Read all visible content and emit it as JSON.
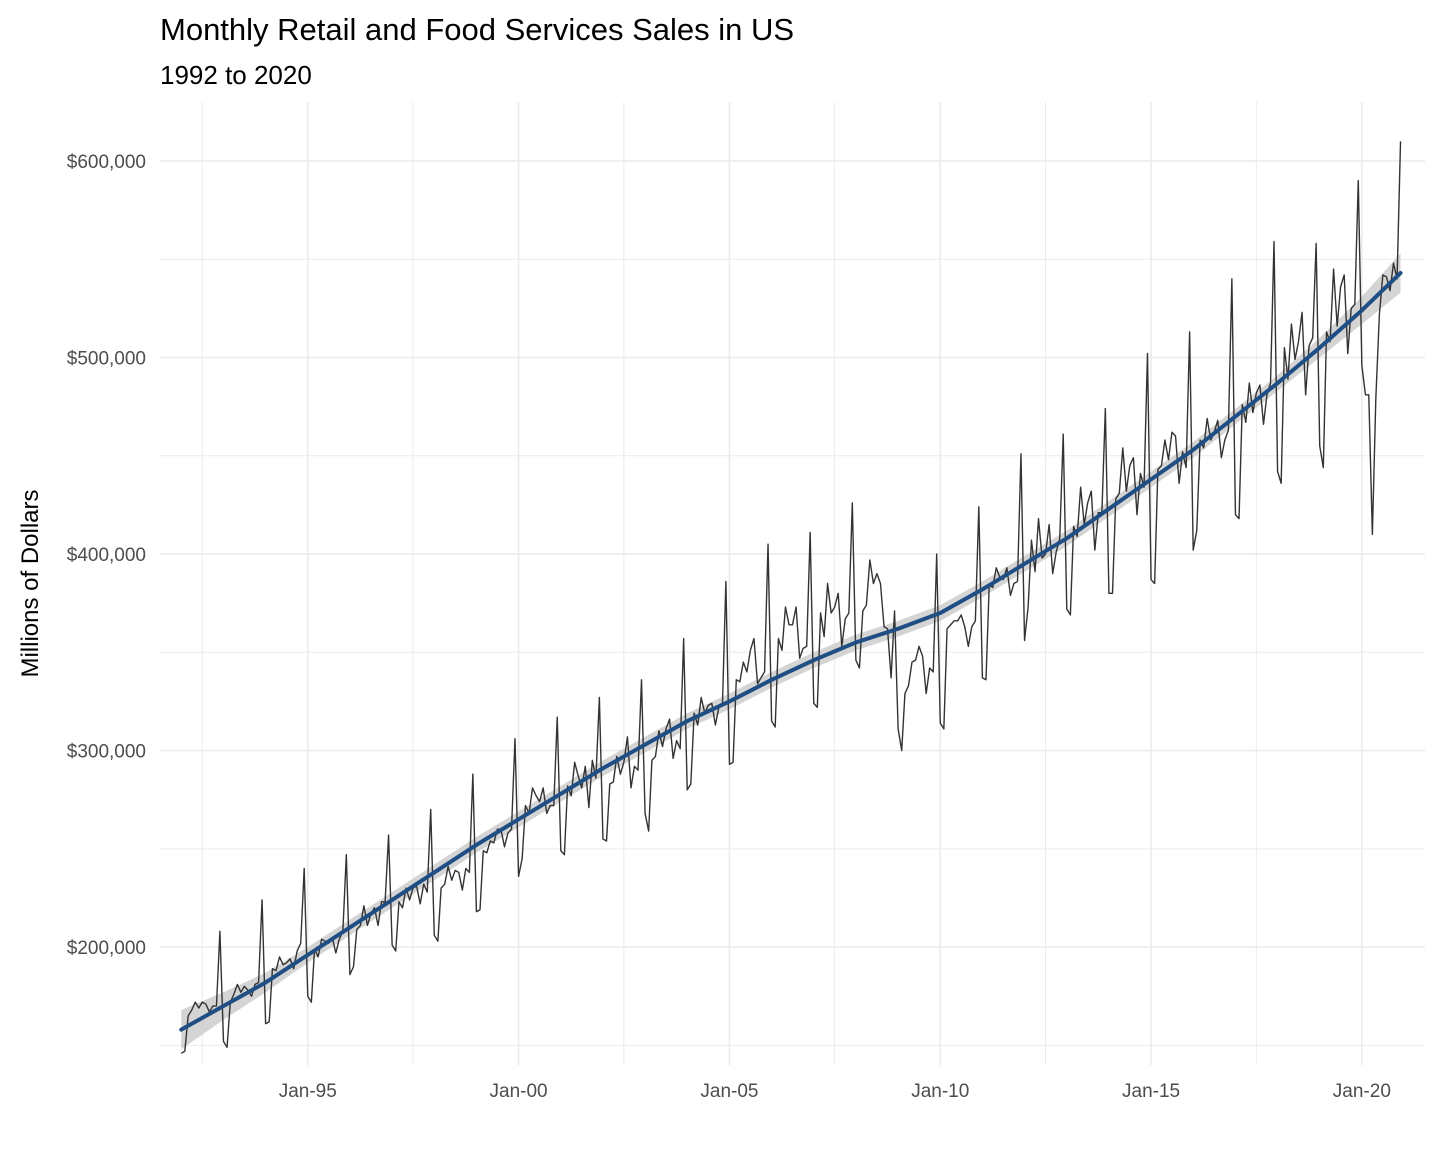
{
  "chart_data": {
    "type": "line",
    "title": "Monthly Retail and Food Services Sales in US",
    "subtitle": "1992 to 2020",
    "xlabel": "",
    "ylabel": "Millions of Dollars",
    "x_range": [
      "1991-07-01",
      "2021-07-01"
    ],
    "ylim": [
      140000,
      630000
    ],
    "x_ticks": [
      {
        "date": "1995-01-01",
        "label": "Jan-95"
      },
      {
        "date": "2000-01-01",
        "label": "Jan-00"
      },
      {
        "date": "2005-01-01",
        "label": "Jan-05"
      },
      {
        "date": "2010-01-01",
        "label": "Jan-10"
      },
      {
        "date": "2015-01-01",
        "label": "Jan-15"
      },
      {
        "date": "2020-01-01",
        "label": "Jan-20"
      }
    ],
    "y_ticks": [
      {
        "value": 200000,
        "label": "$200,000"
      },
      {
        "value": 300000,
        "label": "$300,000"
      },
      {
        "value": 400000,
        "label": "$400,000"
      },
      {
        "value": 500000,
        "label": "$500,000"
      },
      {
        "value": 600000,
        "label": "$600,000"
      }
    ],
    "grid": true,
    "legend": "none",
    "colors": {
      "raw_line": "#333333",
      "trend_line": "#1f4e85",
      "confidence_band": "#cccccc",
      "grid": "#ebebeb",
      "tick_text": "#4d4d4d"
    },
    "series": [
      {
        "type": "line",
        "years": {
          "1992": [
            146000,
            147000,
            165000,
            168000,
            172000,
            169000,
            172000,
            171000,
            167000,
            170000,
            170000,
            208000
          ],
          "1993": [
            152000,
            149000,
            172000,
            176000,
            181000,
            177000,
            180000,
            178000,
            175000,
            181000,
            182000,
            224000
          ],
          "1994": [
            161000,
            162000,
            189000,
            188000,
            195000,
            191000,
            192000,
            194000,
            189000,
            198000,
            202000,
            240000
          ],
          "1995": [
            175000,
            172000,
            199000,
            195000,
            204000,
            203000,
            202000,
            205000,
            197000,
            204000,
            208000,
            247000
          ],
          "1996": [
            186000,
            190000,
            209000,
            211000,
            221000,
            211000,
            217000,
            220000,
            211000,
            223000,
            223000,
            257000
          ],
          "1997": [
            201000,
            198000,
            223000,
            220000,
            230000,
            224000,
            230000,
            231000,
            222000,
            232000,
            228000,
            270000
          ],
          "1998": [
            206000,
            203000,
            230000,
            232000,
            241000,
            234000,
            239000,
            238000,
            229000,
            240000,
            238000,
            288000
          ],
          "1999": [
            218000,
            219000,
            249000,
            248000,
            254000,
            253000,
            260000,
            260000,
            251000,
            258000,
            260000,
            306000
          ],
          "2000": [
            236000,
            245000,
            272000,
            268000,
            281000,
            277000,
            274000,
            281000,
            268000,
            272000,
            272000,
            317000
          ],
          "2001": [
            249000,
            247000,
            282000,
            277000,
            294000,
            287000,
            281000,
            292000,
            271000,
            295000,
            286000,
            327000
          ],
          "2002": [
            255000,
            254000,
            283000,
            284000,
            297000,
            288000,
            294000,
            307000,
            281000,
            292000,
            290000,
            336000
          ],
          "2003": [
            268000,
            259000,
            295000,
            297000,
            310000,
            302000,
            311000,
            316000,
            296000,
            305000,
            301000,
            357000
          ],
          "2004": [
            280000,
            283000,
            319000,
            313000,
            327000,
            319000,
            323000,
            324000,
            313000,
            322000,
            323000,
            386000
          ],
          "2005": [
            293000,
            294000,
            336000,
            335000,
            345000,
            340000,
            351000,
            357000,
            334000,
            337000,
            340000,
            405000
          ],
          "2006": [
            315000,
            312000,
            357000,
            351000,
            373000,
            364000,
            364000,
            373000,
            347000,
            352000,
            353000,
            411000
          ],
          "2007": [
            324000,
            322000,
            370000,
            358000,
            385000,
            370000,
            373000,
            380000,
            353000,
            367000,
            370000,
            426000
          ],
          "2008": [
            346000,
            342000,
            371000,
            374000,
            397000,
            385000,
            390000,
            385000,
            363000,
            362000,
            337000,
            371000
          ],
          "2009": [
            311000,
            300000,
            329000,
            333000,
            345000,
            346000,
            353000,
            348000,
            329000,
            342000,
            340000,
            400000
          ],
          "2010": [
            314000,
            311000,
            362000,
            364000,
            366000,
            366000,
            369000,
            363000,
            353000,
            363000,
            366000,
            424000
          ],
          "2011": [
            337000,
            336000,
            384000,
            383000,
            393000,
            388000,
            387000,
            393000,
            379000,
            385000,
            386000,
            451000
          ],
          "2012": [
            356000,
            373000,
            407000,
            391000,
            418000,
            398000,
            400000,
            415000,
            390000,
            401000,
            408000,
            461000
          ],
          "2013": [
            372000,
            369000,
            414000,
            409000,
            434000,
            415000,
            426000,
            432000,
            402000,
            421000,
            421000,
            474000
          ],
          "2014": [
            380000,
            380000,
            428000,
            431000,
            454000,
            432000,
            445000,
            449000,
            420000,
            441000,
            434000,
            502000
          ],
          "2015": [
            387000,
            385000,
            443000,
            445000,
            458000,
            448000,
            462000,
            460000,
            436000,
            452000,
            444000,
            513000
          ],
          "2016": [
            402000,
            412000,
            458000,
            454000,
            469000,
            458000,
            462000,
            468000,
            449000,
            458000,
            463000,
            540000
          ],
          "2017": [
            420000,
            418000,
            476000,
            467000,
            487000,
            472000,
            482000,
            486000,
            466000,
            481000,
            487000,
            559000
          ],
          "2018": [
            442000,
            436000,
            505000,
            489000,
            517000,
            499000,
            508000,
            523000,
            481000,
            506000,
            510000,
            558000
          ],
          "2019": [
            455000,
            444000,
            513000,
            508000,
            545000,
            516000,
            536000,
            542000,
            502000,
            525000,
            527000,
            590000
          ],
          "2020": [
            496000,
            481000,
            481000,
            410000,
            479000,
            522000,
            542000,
            541000,
            534000,
            548000,
            540000,
            610000
          ]
        }
      },
      {
        "type": "smooth",
        "points": [
          [
            "1992-01-01",
            158000
          ],
          [
            "1993-01-01",
            170000
          ],
          [
            "1994-01-01",
            182000
          ],
          [
            "1995-01-01",
            196000
          ],
          [
            "1996-01-01",
            210000
          ],
          [
            "1997-01-01",
            224000
          ],
          [
            "1998-01-01",
            238000
          ],
          [
            "1999-01-01",
            252000
          ],
          [
            "2000-01-01",
            265000
          ],
          [
            "2001-01-01",
            278000
          ],
          [
            "2002-01-01",
            291000
          ],
          [
            "2003-01-01",
            303000
          ],
          [
            "2004-01-01",
            315000
          ],
          [
            "2005-01-01",
            325000
          ],
          [
            "2006-01-01",
            336000
          ],
          [
            "2007-01-01",
            346000
          ],
          [
            "2008-01-01",
            355000
          ],
          [
            "2009-01-01",
            362000
          ],
          [
            "2010-01-01",
            370000
          ],
          [
            "2011-01-01",
            382000
          ],
          [
            "2012-01-01",
            395000
          ],
          [
            "2013-01-01",
            408000
          ],
          [
            "2014-01-01",
            423000
          ],
          [
            "2015-01-01",
            438000
          ],
          [
            "2016-01-01",
            453000
          ],
          [
            "2017-01-01",
            470000
          ],
          [
            "2018-01-01",
            487000
          ],
          [
            "2019-01-01",
            505000
          ],
          [
            "2020-01-01",
            524000
          ],
          [
            "2020-12-01",
            543000
          ]
        ],
        "band_halfwidth": [
          10000,
          7000,
          5000,
          4000,
          4000,
          4000,
          4000,
          4000,
          4000,
          4000,
          4000,
          4000,
          4000,
          4000,
          4000,
          4000,
          4000,
          4000,
          4000,
          4000,
          4000,
          4000,
          4000,
          4000,
          4000,
          4000,
          4000,
          5000,
          7000,
          10000
        ]
      }
    ]
  }
}
